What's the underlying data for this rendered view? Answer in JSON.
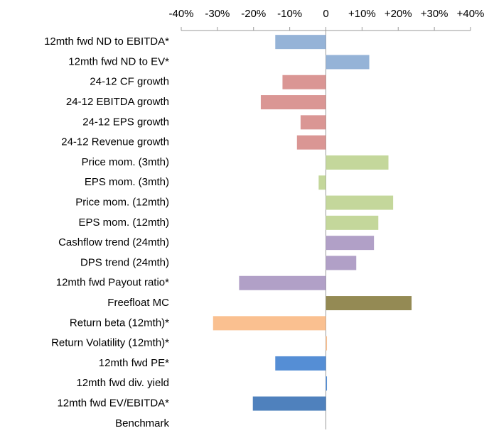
{
  "chart_data": {
    "type": "bar",
    "orientation": "horizontal",
    "categories": [
      "12mth fwd ND to EBITDA*",
      "12mth fwd ND to EV*",
      "24-12 CF growth",
      "24-12 EBITDA growth",
      "24-12 EPS growth",
      "24-12 Revenue growth",
      "Price mom. (3mth)",
      "EPS mom. (3mth)",
      "Price mom. (12mth)",
      "EPS mom. (12mth)",
      "Cashflow trend (24mth)",
      "DPS trend (24mth)",
      "12mth fwd Payout ratio*",
      "Freefloat MC",
      "Return beta (12mth)*",
      "Return Volatility (12mth)*",
      "12mth fwd PE*",
      "12mth fwd div. yield",
      "12mth fwd EV/EBITDA*",
      "Benchmark"
    ],
    "values": [
      -14,
      12,
      -12,
      -18,
      -7,
      -8,
      17.3,
      -2,
      18.6,
      14.5,
      13.3,
      8.4,
      -24,
      23.7,
      -31.2,
      0.3,
      -14,
      0.3,
      -20.2,
      0
    ],
    "colors": [
      "#95b3d7",
      "#95b3d7",
      "#da9694",
      "#da9694",
      "#da9694",
      "#da9694",
      "#c4d79b",
      "#c4d79b",
      "#c4d79b",
      "#c4d79b",
      "#b1a0c7",
      "#b1a0c7",
      "#b1a0c7",
      "#948a54",
      "#fac090",
      "#fac090",
      "#558ed5",
      "#558ed5",
      "#4f81bd",
      "#4f81bd"
    ],
    "xlim": [
      -40,
      40
    ],
    "xticks": [
      {
        "value": -40,
        "label": "-40%"
      },
      {
        "value": -30,
        "label": "-30%"
      },
      {
        "value": -20,
        "label": "-20%"
      },
      {
        "value": -10,
        "label": "-10%"
      },
      0,
      {
        "value": 10,
        "label": "+10%"
      },
      {
        "value": 20,
        "label": "+20%"
      },
      {
        "value": 30,
        "label": "+30%"
      },
      {
        "value": 40,
        "label": "+40%"
      }
    ]
  }
}
